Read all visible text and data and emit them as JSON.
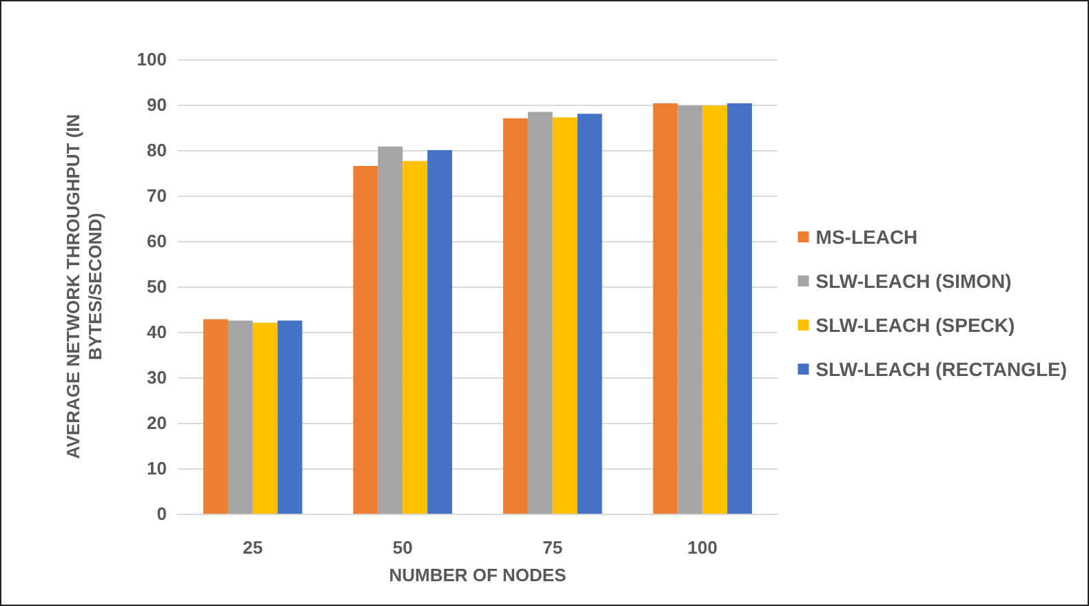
{
  "chart_data": {
    "type": "bar",
    "xlabel": "NUMBER OF NODES",
    "ylabel": "AVERAGE NETWORK THROUGHPUT (IN\nBYTES/SECOND)",
    "categories": [
      "25",
      "50",
      "75",
      "100"
    ],
    "series": [
      {
        "name": "MS-LEACH",
        "color": "#ed7d31",
        "values": [
          42.8,
          76.5,
          87.0,
          90.3
        ]
      },
      {
        "name": "SLW-LEACH (SIMON)",
        "color": "#a5a5a5",
        "values": [
          42.5,
          80.8,
          88.4,
          89.8
        ]
      },
      {
        "name": "SLW-LEACH (SPECK)",
        "color": "#ffc000",
        "values": [
          42.0,
          77.6,
          87.2,
          89.8
        ]
      },
      {
        "name": "SLW-LEACH (RECTANGLE)",
        "color": "#4472c4",
        "values": [
          42.5,
          80.0,
          88.0,
          90.3
        ]
      }
    ],
    "ylim": [
      0,
      100
    ],
    "yticks": [
      0,
      10,
      20,
      30,
      40,
      50,
      60,
      70,
      80,
      90,
      100
    ],
    "grid": "y",
    "legend": "right"
  }
}
